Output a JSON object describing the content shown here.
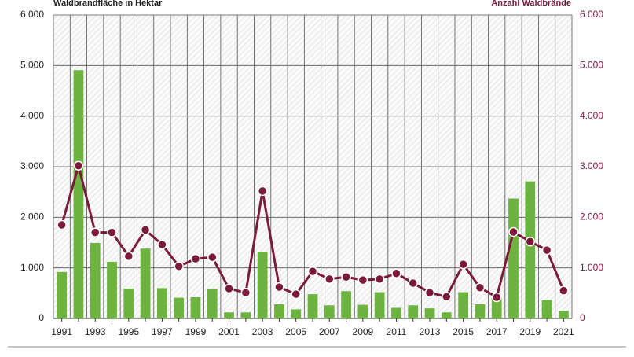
{
  "chart_data": {
    "type": "bar-line",
    "categories": [
      "1991",
      null,
      "1993",
      null,
      "1995",
      null,
      "1997",
      null,
      "1999",
      null,
      "2001",
      null,
      "2003",
      null,
      "2005",
      null,
      "2007",
      null,
      "2009",
      null,
      "2011",
      null,
      "2013",
      null,
      "2015",
      null,
      "2017",
      null,
      "2019",
      null,
      "2021"
    ],
    "series": [
      {
        "name": "Waldbrandfläche in Hektar",
        "type": "bar",
        "color": "#6db33f",
        "values": [
          920,
          4908,
          1493,
          1120,
          590,
          1380,
          600,
          410,
          420,
          580,
          120,
          120,
          1320,
          280,
          180,
          480,
          260,
          540,
          270,
          520,
          210,
          260,
          200,
          120,
          520,
          280,
          400,
          2370,
          2710,
          370,
          150
        ]
      },
      {
        "name": "Anzahl Waldbrände",
        "type": "line",
        "axis": "y2",
        "color": "#7b1a3d",
        "values": [
          1850,
          3020,
          1700,
          1700,
          1230,
          1750,
          1460,
          1030,
          1180,
          1210,
          590,
          510,
          2520,
          620,
          480,
          930,
          780,
          820,
          760,
          780,
          890,
          700,
          510,
          430,
          1070,
          610,
          420,
          1710,
          1520,
          1350,
          550
        ]
      }
    ],
    "ylim": [
      0,
      6000
    ],
    "yticks": [
      0,
      {
        "value": 1000,
        "label": "1.000"
      },
      {
        "value": 2000,
        "label": "2.000"
      },
      {
        "value": 3000,
        "label": "3.000"
      },
      {
        "value": 4000,
        "label": "4.000"
      },
      {
        "value": 5000,
        "label": "5.000"
      },
      {
        "value": 6000,
        "label": "6.000"
      }
    ],
    "y2lim": [
      0,
      6000
    ],
    "y2ticks": [
      0,
      {
        "value": 1000,
        "label": "1.000"
      },
      {
        "value": 2000,
        "label": "2.000"
      },
      {
        "value": 3000,
        "label": "3.000"
      },
      {
        "value": 4000,
        "label": "4.000"
      },
      {
        "value": 5000,
        "label": "5.000"
      },
      {
        "value": 6000,
        "label": "6.000"
      }
    ],
    "grid": true
  }
}
